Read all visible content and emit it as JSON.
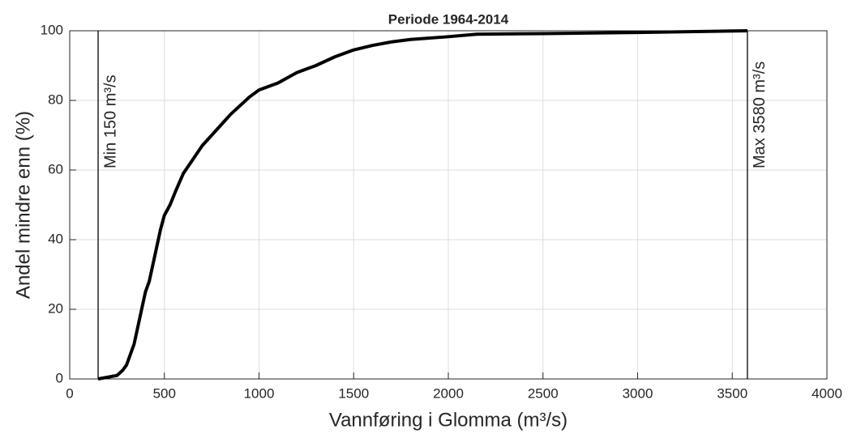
{
  "chart_data": {
    "type": "line",
    "title": "Periode 1964-2014",
    "x_label": "Vannføring i Glomma (m³/s)",
    "y_label": "Andel mindre enn (%)",
    "x": [
      150,
      200,
      250,
      280,
      300,
      320,
      340,
      360,
      380,
      400,
      420,
      440,
      460,
      480,
      500,
      530,
      560,
      600,
      650,
      700,
      750,
      800,
      850,
      900,
      950,
      1000,
      1100,
      1200,
      1300,
      1400,
      1500,
      1600,
      1700,
      1800,
      2000,
      2150,
      2500,
      3000,
      3580
    ],
    "values": [
      0,
      0.5,
      1,
      2.5,
      4,
      7,
      10,
      15,
      20,
      25,
      28,
      33,
      38,
      43,
      47,
      50,
      54,
      59,
      63,
      67,
      70,
      73,
      76,
      78.5,
      81,
      83,
      85,
      88,
      90,
      92.5,
      94.5,
      95.8,
      96.8,
      97.5,
      98.3,
      99,
      99.2,
      99.5,
      100
    ],
    "color": "#000000",
    "xlim": [
      0,
      4000
    ],
    "xticks": [
      0,
      500,
      1000,
      1500,
      2000,
      2500,
      3000,
      3500,
      4000
    ],
    "ylim": [
      0,
      100
    ],
    "yticks": [
      0,
      20,
      40,
      60,
      80,
      100
    ],
    "grid": true,
    "vlines": [
      {
        "x": 150,
        "label": "Min 150 m³/s"
      },
      {
        "x": 3580,
        "label": "Max 3580 m³/s"
      }
    ]
  }
}
